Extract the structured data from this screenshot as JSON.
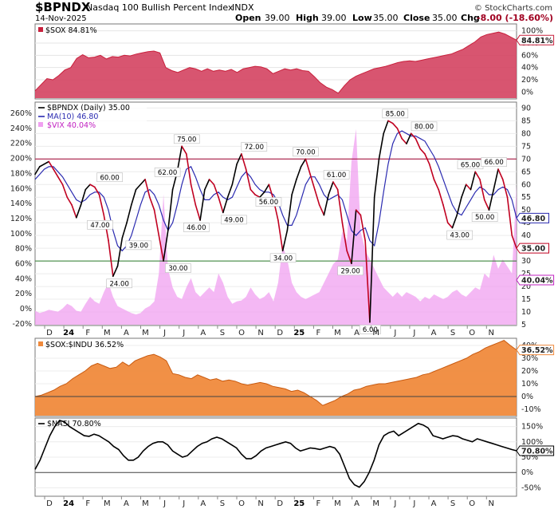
{
  "header": {
    "symbol": "$BPNDX",
    "name": "Nasdaq 100 Bullish Percent Index",
    "exchange": "INDX",
    "date": "14-Nov-2025",
    "open_label": "Open",
    "open": "39.00",
    "high_label": "High",
    "high": "39.00",
    "low_label": "Low",
    "low": "35.00",
    "close_label": "Close",
    "close": "35.00",
    "chg_label": "Chg",
    "chg": "-8.00 (-18.60%)",
    "credit": "© StockCharts.com"
  },
  "colors": {
    "sox": "#c8203c",
    "sox_fill": "#d44260",
    "bpndx": "#000000",
    "bpndx_down": "#c00020",
    "ma": "#2a2ab0",
    "vix": "#f0a0f0",
    "vix_label": "#c020c0",
    "ratio": "#f08a3c",
    "nasi": "#000000",
    "hline_red": "#a00030",
    "hline_green": "#2a7a2a"
  },
  "chart_data": [
    {
      "type": "area",
      "legend": "$SOX 84.81%",
      "last_label": "84.81%",
      "y_ticks": [
        "100%",
        "80%",
        "60%",
        "40%",
        "20%",
        "0%"
      ],
      "ylim": [
        -10,
        110
      ],
      "values": [
        2,
        12,
        22,
        20,
        27,
        36,
        40,
        55,
        61,
        56,
        57,
        60,
        54,
        58,
        57,
        60,
        59,
        62,
        64,
        66,
        67,
        64,
        40,
        35,
        32,
        36,
        40,
        38,
        34,
        38,
        34,
        36,
        34,
        37,
        32,
        38,
        40,
        42,
        41,
        38,
        30,
        34,
        38,
        36,
        38,
        35,
        34,
        25,
        15,
        8,
        4,
        -2,
        10,
        20,
        26,
        30,
        34,
        38,
        40,
        42,
        45,
        48,
        50,
        51,
        50,
        52,
        54,
        56,
        58,
        60,
        62,
        66,
        70,
        76,
        82,
        90,
        94,
        96,
        98,
        95,
        90,
        84.81
      ]
    },
    {
      "type": "line",
      "legend": [
        "$BPNDX (Daily) 35.00",
        "MA(10) 46.80",
        "$VIX 40.04%"
      ],
      "left_ticks": [
        "260%",
        "240%",
        "220%",
        "200%",
        "180%",
        "160%",
        "140%",
        "120%",
        "100%",
        "80%",
        "60%",
        "40%",
        "20%",
        "0%",
        "-20%"
      ],
      "right_ticks": [
        "90",
        "85",
        "80",
        "75",
        "70",
        "65",
        "60",
        "55",
        "50",
        "45",
        "40",
        "35",
        "30",
        "25",
        "20",
        "15",
        "10",
        "5"
      ],
      "ylim": [
        5,
        92
      ],
      "last_labels": {
        "bpndx": "35.00",
        "ma": "46.80",
        "vix": "40.04%"
      },
      "bpndx": [
        64,
        67,
        68,
        69,
        66,
        63,
        60,
        55,
        52,
        47,
        52,
        58,
        60,
        59,
        56,
        48,
        38,
        24,
        28,
        39,
        45,
        52,
        58,
        60,
        62,
        55,
        50,
        40,
        30,
        42,
        58,
        65,
        75,
        72,
        60,
        52,
        46,
        58,
        62,
        60,
        55,
        49,
        55,
        60,
        68,
        72,
        66,
        58,
        56,
        55,
        57,
        60,
        54,
        46,
        34,
        42,
        56,
        62,
        67,
        70,
        64,
        58,
        52,
        48,
        56,
        61,
        58,
        45,
        34,
        29,
        50,
        48,
        38,
        6,
        55,
        70,
        80,
        85,
        84,
        82,
        78,
        76,
        80,
        78,
        74,
        72,
        68,
        62,
        58,
        52,
        45,
        43,
        48,
        55,
        60,
        58,
        65,
        62,
        54,
        50,
        58,
        66,
        62,
        55,
        40,
        35
      ],
      "ma": [
        62,
        64,
        66,
        67,
        67,
        65,
        63,
        60,
        57,
        54,
        53,
        54,
        56,
        57,
        57,
        55,
        50,
        42,
        36,
        34,
        36,
        40,
        46,
        52,
        57,
        58,
        56,
        52,
        46,
        42,
        45,
        52,
        60,
        66,
        67,
        63,
        58,
        54,
        54,
        56,
        57,
        55,
        54,
        55,
        59,
        63,
        65,
        63,
        60,
        58,
        57,
        57,
        56,
        53,
        48,
        44,
        44,
        48,
        54,
        60,
        63,
        63,
        60,
        56,
        54,
        55,
        56,
        54,
        48,
        42,
        40,
        42,
        43,
        38,
        36,
        45,
        57,
        68,
        76,
        80,
        81,
        80,
        79,
        79,
        78,
        77,
        74,
        71,
        67,
        62,
        57,
        52,
        49,
        48,
        51,
        54,
        57,
        59,
        58,
        56,
        56,
        58,
        59,
        58,
        54,
        46.8
      ],
      "vix": [
        13,
        12.5,
        12.8,
        13.2,
        13,
        12.8,
        13.5,
        14.5,
        14,
        13,
        12.8,
        14.5,
        16,
        15,
        14.5,
        17,
        19,
        16,
        14,
        13.5,
        13,
        12.5,
        12.2,
        12.5,
        13.5,
        14,
        15,
        21,
        38,
        22,
        18,
        16,
        15.5,
        18,
        20,
        17,
        16,
        17,
        18,
        17,
        21,
        19,
        16,
        14.5,
        15,
        15.2,
        16,
        18,
        16.5,
        15.5,
        16,
        17,
        15,
        19,
        27,
        24,
        19,
        17,
        16,
        15.5,
        16,
        16.5,
        17,
        19,
        21,
        23,
        24,
        30,
        28,
        45,
        52,
        30,
        26,
        24,
        22,
        20,
        18,
        17,
        16,
        17,
        16,
        17,
        16.5,
        16,
        15,
        16,
        15.5,
        16.5,
        16,
        15.5,
        16,
        17,
        17.5,
        16.5,
        16,
        17,
        18,
        17.5,
        21,
        20,
        25,
        22,
        24,
        22.5,
        21,
        40.04
      ]
    },
    {
      "type": "area",
      "legend": "$SOX:$INDU 36.52%",
      "last_label": "36.52%",
      "y_ticks": [
        "40%",
        "30%",
        "20%",
        "10%",
        "0%",
        "-10%"
      ],
      "ylim": [
        -15,
        45
      ],
      "values": [
        0,
        1,
        3,
        5,
        8,
        10,
        14,
        17,
        20,
        24,
        26,
        24,
        22,
        23,
        27,
        24,
        28,
        30,
        32,
        33,
        31,
        28,
        18,
        17,
        15,
        14,
        17,
        15,
        13,
        14,
        12,
        13,
        12,
        10,
        9,
        10,
        11,
        10,
        8,
        7,
        6,
        4,
        5,
        3,
        0,
        -3,
        -7,
        -5,
        -3,
        0,
        2,
        5,
        6,
        8,
        9,
        10,
        10,
        11,
        12,
        13,
        14,
        15,
        17,
        18,
        20,
        22,
        24,
        26,
        28,
        30,
        33,
        35,
        38,
        40,
        42,
        44,
        40,
        36.52
      ]
    },
    {
      "type": "line",
      "legend": "$NASI 70.80%",
      "last_label": "70.80%",
      "y_ticks": [
        "150%",
        "100%",
        "50%",
        "0%",
        "-50%"
      ],
      "ylim": [
        -75,
        175
      ],
      "values": [
        10,
        40,
        80,
        120,
        150,
        170,
        165,
        150,
        140,
        130,
        120,
        118,
        125,
        120,
        110,
        100,
        85,
        75,
        55,
        40,
        40,
        50,
        70,
        85,
        95,
        100,
        100,
        90,
        70,
        60,
        50,
        55,
        70,
        85,
        95,
        100,
        110,
        115,
        110,
        100,
        90,
        80,
        60,
        45,
        45,
        55,
        70,
        80,
        85,
        90,
        95,
        100,
        95,
        80,
        70,
        75,
        80,
        78,
        75,
        80,
        85,
        80,
        60,
        20,
        -20,
        -40,
        -48,
        -30,
        0,
        40,
        90,
        120,
        130,
        135,
        120,
        130,
        140,
        150,
        160,
        155,
        145,
        120,
        115,
        110,
        115,
        120,
        118,
        110,
        105,
        100,
        110,
        105,
        100,
        95,
        90,
        85,
        80,
        75,
        70.8
      ]
    }
  ],
  "x_axis": {
    "months": [
      "D",
      "24",
      "F",
      "M",
      "A",
      "M",
      "J",
      "J",
      "A",
      "S",
      "O",
      "N",
      "D",
      "25",
      "F",
      "M",
      "A",
      "M",
      "J",
      "J",
      "A",
      "S",
      "O",
      "N"
    ],
    "year_labels": [
      "24",
      "25"
    ]
  },
  "annotations": [
    {
      "text": "60.00",
      "at": 0.155,
      "value": 60
    },
    {
      "text": "47.00",
      "at": 0.135,
      "value": 47
    },
    {
      "text": "24.00",
      "at": 0.175,
      "value": 24
    },
    {
      "text": "39.00",
      "at": 0.215,
      "value": 39
    },
    {
      "text": "62.00",
      "at": 0.275,
      "value": 62
    },
    {
      "text": "30.00",
      "at": 0.297,
      "value": 30
    },
    {
      "text": "75.00",
      "at": 0.315,
      "value": 75
    },
    {
      "text": "46.00",
      "at": 0.335,
      "value": 46
    },
    {
      "text": "49.00",
      "at": 0.413,
      "value": 49
    },
    {
      "text": "72.00",
      "at": 0.455,
      "value": 72
    },
    {
      "text": "56.00",
      "at": 0.485,
      "value": 56
    },
    {
      "text": "34.00",
      "at": 0.515,
      "value": 34
    },
    {
      "text": "70.00",
      "at": 0.562,
      "value": 70
    },
    {
      "text": "61.00",
      "at": 0.626,
      "value": 61
    },
    {
      "text": "29.00",
      "at": 0.655,
      "value": 29
    },
    {
      "text": "6.00",
      "at": 0.696,
      "value": 6
    },
    {
      "text": "85.00",
      "at": 0.748,
      "value": 85
    },
    {
      "text": "80.00",
      "at": 0.808,
      "value": 80
    },
    {
      "text": "65.00",
      "at": 0.904,
      "value": 65
    },
    {
      "text": "43.00",
      "at": 0.882,
      "value": 43
    },
    {
      "text": "66.00",
      "at": 0.953,
      "value": 66
    },
    {
      "text": "50.00",
      "at": 0.934,
      "value": 50
    }
  ],
  "hlines": {
    "red": 70,
    "green": 30
  }
}
